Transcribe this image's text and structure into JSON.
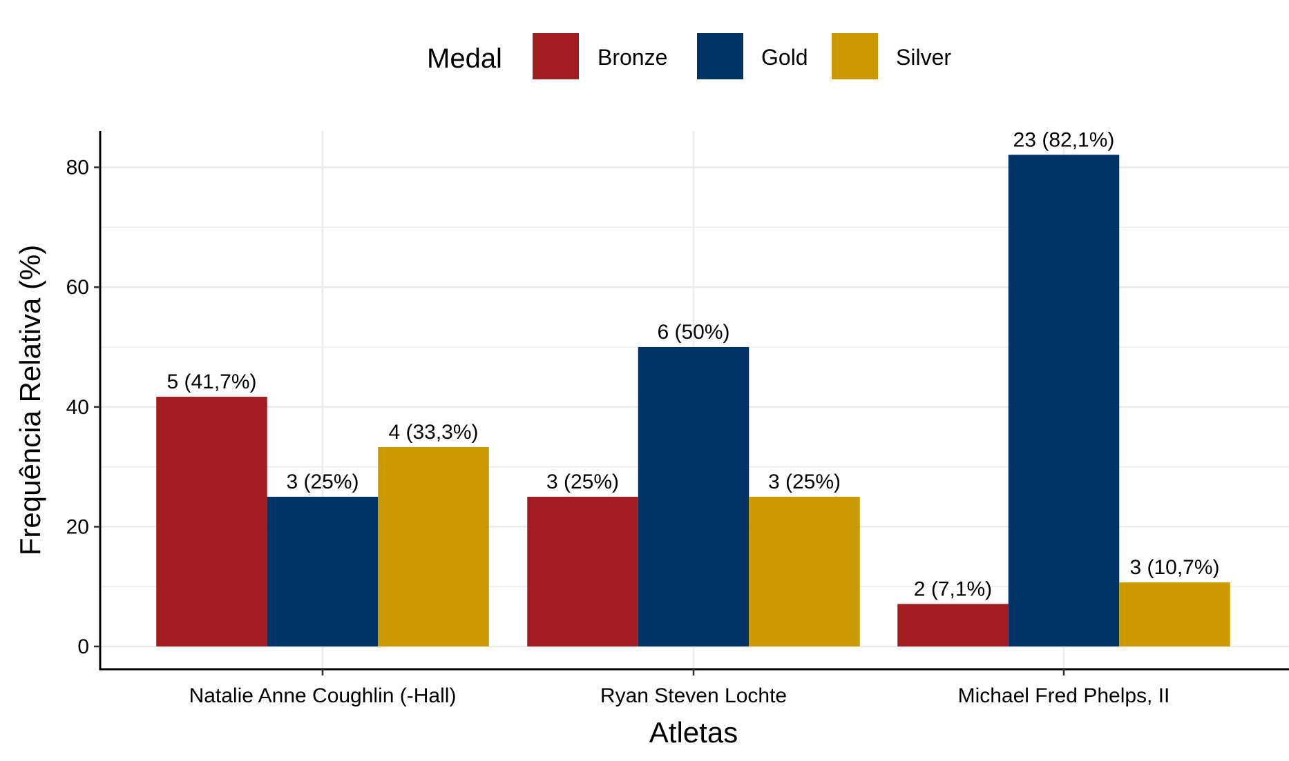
{
  "chart_data": {
    "type": "bar",
    "xlabel": "Atletas",
    "ylabel": "Frequência Relativa (%)",
    "ylim": [
      0,
      86
    ],
    "yticks": [
      0,
      20,
      40,
      60,
      80
    ],
    "grid": true,
    "legend": {
      "title": "Medal",
      "position": "top"
    },
    "categories": [
      "Natalie Anne Coughlin (-Hall)",
      "Ryan Steven Lochte",
      "Michael Fred Phelps, II"
    ],
    "series": [
      {
        "name": "Bronze",
        "color": "#A11D21",
        "values": [
          41.7,
          25,
          7.1
        ],
        "labels": [
          "5 (41,7%)",
          "3 (25%)",
          "2 (7,1%)"
        ]
      },
      {
        "name": "Gold",
        "color": "#003366",
        "values": [
          25,
          50,
          82.1
        ],
        "labels": [
          "3 (25%)",
          "6 (50%)",
          "23 (82,1%)"
        ]
      },
      {
        "name": "Silver",
        "color": "#CC9900",
        "values": [
          33.3,
          25,
          10.7
        ],
        "labels": [
          "4 (33,3%)",
          "3 (25%)",
          "3 (10,7%)"
        ]
      }
    ]
  }
}
